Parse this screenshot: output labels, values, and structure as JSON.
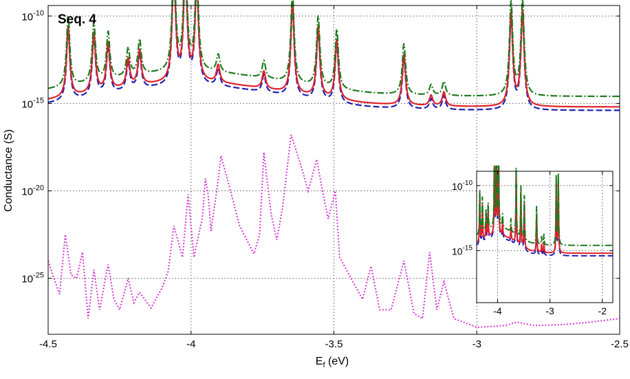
{
  "colors": {
    "blue": "#1f1fb4",
    "red": "#e0202a",
    "green": "#1e7a1e",
    "magenta": "#d633d6",
    "grid": "#5a5a5a"
  },
  "chart_data": {
    "type": "line",
    "panel_label": "Seq. 4",
    "title": "",
    "xlabel": "E",
    "xlabel_sub": "f",
    "xlabel_unit": " (eV)",
    "ylabel": "Conductance (S)",
    "xlim": [
      -4.5,
      -2.5
    ],
    "ylog10lim": [
      -28.2,
      -9.4
    ],
    "yscale": "log",
    "grid": true,
    "xticks": [
      {
        "v": -4.5,
        "label": "-4.5"
      },
      {
        "v": -4.0,
        "label": "-4"
      },
      {
        "v": -3.5,
        "label": "-3.5"
      },
      {
        "v": -3.0,
        "label": "-3"
      },
      {
        "v": -2.5,
        "label": "-2.5"
      }
    ],
    "yticks": [
      {
        "exp": -10,
        "base": "10",
        "sup": "-10"
      },
      {
        "exp": -15,
        "base": "10",
        "sup": "-15"
      },
      {
        "exp": -20,
        "base": "10",
        "sup": "-20"
      },
      {
        "exp": -25,
        "base": "10",
        "sup": "-25"
      }
    ],
    "series": [
      {
        "key": "blue",
        "style": "dash",
        "logbase": -15.4,
        "offset": 0.0
      },
      {
        "key": "red",
        "style": "solid",
        "logbase": -15.3,
        "offset": 0.1
      },
      {
        "key": "green",
        "style": "dashdot",
        "logbase": -15.05,
        "offset": 0.45
      }
    ],
    "series_peaks": [
      {
        "x": -4.43,
        "h": 4.0
      },
      {
        "x": -4.34,
        "h": 3.4
      },
      {
        "x": -4.29,
        "h": 2.7
      },
      {
        "x": -4.22,
        "h": 1.6
      },
      {
        "x": -4.18,
        "h": 2.0
      },
      {
        "x": -4.06,
        "h": 6.6
      },
      {
        "x": -4.02,
        "h": 6.8
      },
      {
        "x": -3.98,
        "h": 5.8
      },
      {
        "x": -3.905,
        "h": 1.0
      },
      {
        "x": -3.745,
        "h": 1.0
      },
      {
        "x": -3.645,
        "h": 5.2
      },
      {
        "x": -3.555,
        "h": 4.0
      },
      {
        "x": -3.49,
        "h": 3.4
      },
      {
        "x": -3.255,
        "h": 2.9
      },
      {
        "x": -3.16,
        "h": 0.6
      },
      {
        "x": -3.115,
        "h": 0.8
      },
      {
        "x": -2.88,
        "h": 5.3
      },
      {
        "x": -2.84,
        "h": 5.4
      }
    ],
    "magenta_points": [
      [
        -4.5,
        -24.0
      ],
      [
        -4.48,
        -25.0
      ],
      [
        -4.46,
        -25.9
      ],
      [
        -4.44,
        -22.5
      ],
      [
        -4.42,
        -24.8
      ],
      [
        -4.4,
        -25.0
      ],
      [
        -4.38,
        -23.5
      ],
      [
        -4.36,
        -27.3
      ],
      [
        -4.34,
        -24.5
      ],
      [
        -4.32,
        -26.8
      ],
      [
        -4.29,
        -24.2
      ],
      [
        -4.27,
        -26.2
      ],
      [
        -4.25,
        -26.8
      ],
      [
        -4.22,
        -25.0
      ],
      [
        -4.2,
        -26.4
      ],
      [
        -4.18,
        -25.8
      ],
      [
        -4.14,
        -26.7
      ],
      [
        -4.1,
        -25.5
      ],
      [
        -4.08,
        -24.6
      ],
      [
        -4.06,
        -22.0
      ],
      [
        -4.03,
        -23.8
      ],
      [
        -4.01,
        -20.2
      ],
      [
        -3.99,
        -23.8
      ],
      [
        -3.96,
        -21.5
      ],
      [
        -3.95,
        -19.3
      ],
      [
        -3.94,
        -20.2
      ],
      [
        -3.93,
        -22.3
      ],
      [
        -3.91,
        -20.0
      ],
      [
        -3.895,
        -18.0
      ],
      [
        -3.87,
        -19.5
      ],
      [
        -3.83,
        -22.0
      ],
      [
        -3.78,
        -23.6
      ],
      [
        -3.76,
        -22.5
      ],
      [
        -3.745,
        -17.8
      ],
      [
        -3.72,
        -21.3
      ],
      [
        -3.7,
        -22.8
      ],
      [
        -3.68,
        -21.0
      ],
      [
        -3.65,
        -16.8
      ],
      [
        -3.62,
        -18.3
      ],
      [
        -3.59,
        -20.0
      ],
      [
        -3.56,
        -18.2
      ],
      [
        -3.54,
        -20.0
      ],
      [
        -3.52,
        -21.6
      ],
      [
        -3.495,
        -20.0
      ],
      [
        -3.48,
        -23.8
      ],
      [
        -3.44,
        -25.0
      ],
      [
        -3.4,
        -26.2
      ],
      [
        -3.37,
        -24.3
      ],
      [
        -3.34,
        -26.8
      ],
      [
        -3.3,
        -26.8
      ],
      [
        -3.255,
        -24.0
      ],
      [
        -3.22,
        -27.0
      ],
      [
        -3.19,
        -27.3
      ],
      [
        -3.165,
        -23.5
      ],
      [
        -3.14,
        -26.8
      ],
      [
        -3.115,
        -25.2
      ],
      [
        -3.08,
        -27.3
      ],
      [
        -3.0,
        -27.8
      ],
      [
        -2.9,
        -27.7
      ],
      [
        -2.86,
        -27.5
      ],
      [
        -2.8,
        -27.7
      ],
      [
        -2.7,
        -27.65
      ],
      [
        -2.6,
        -27.5
      ],
      [
        -2.5,
        -27.3
      ]
    ],
    "inset": {
      "xlim": [
        -4.4,
        -1.8
      ],
      "ylog10lim": [
        -19.0,
        -8.9
      ],
      "xticks": [
        {
          "v": -4,
          "label": "-4"
        },
        {
          "v": -3,
          "label": "-3"
        },
        {
          "v": -2,
          "label": "-2"
        }
      ],
      "yticks": [
        {
          "exp": -10,
          "base": "10",
          "sup": "-10"
        },
        {
          "exp": -15,
          "base": "10",
          "sup": "-15"
        }
      ]
    }
  }
}
